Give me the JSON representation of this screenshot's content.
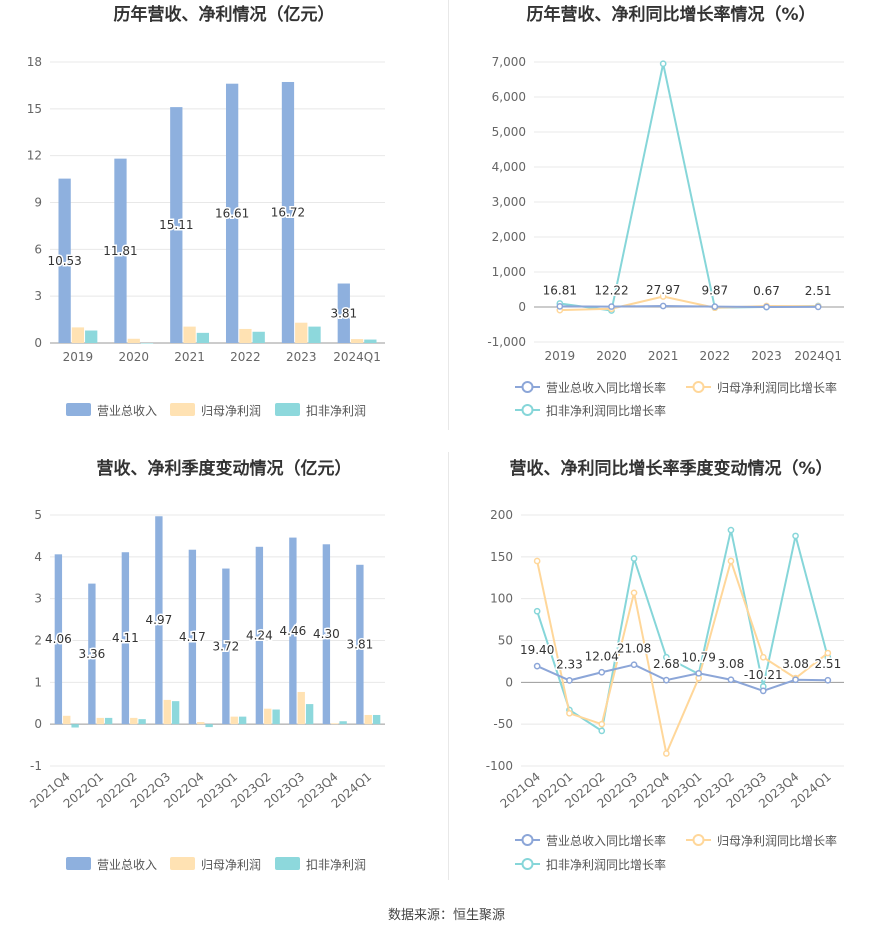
{
  "source_note": "数据来源：恒生聚源",
  "colors": {
    "revenue": "#8eb0de",
    "net_profit": "#ffe2b3",
    "deducted_profit": "#8dd8dc",
    "revenue_line": "#8ca6d8",
    "net_line": "#ffd79a",
    "deducted_line": "#86d6d9",
    "grid": "#e8e8e8",
    "axis": "#666666"
  },
  "chart_data": [
    {
      "type": "bar",
      "title": "历年营收、净利情况（亿元）",
      "categories": [
        "2019",
        "2020",
        "2021",
        "2022",
        "2023",
        "2024Q1"
      ],
      "ylim": [
        0,
        18
      ],
      "yticks": [
        0,
        3,
        6,
        9,
        12,
        15,
        18
      ],
      "label_series": 0,
      "series": [
        {
          "name": "营业总收入",
          "values": [
            10.53,
            11.81,
            15.11,
            16.61,
            16.72,
            3.81
          ],
          "labels": [
            "10.53",
            "11.81",
            "15.11",
            "16.61",
            "16.72",
            "3.81"
          ]
        },
        {
          "name": "归母净利润",
          "values": [
            1.0,
            0.27,
            1.05,
            0.9,
            1.3,
            0.25
          ]
        },
        {
          "name": "扣非净利润",
          "values": [
            0.8,
            0.0,
            0.65,
            0.72,
            1.05,
            0.22
          ]
        }
      ],
      "legend": "bottom"
    },
    {
      "type": "line",
      "title": "历年营收、净利同比增长率情况（%）",
      "categories": [
        "2019",
        "2020",
        "2021",
        "2022",
        "2023",
        "2024Q1"
      ],
      "ylim": [
        -1000,
        7000
      ],
      "yticks": [
        -1000,
        0,
        1000,
        2000,
        3000,
        4000,
        5000,
        6000,
        7000
      ],
      "ytick_labels": [
        "-1,000",
        "0",
        "1,000",
        "2,000",
        "3,000",
        "4,000",
        "5,000",
        "6,000",
        "7,000"
      ],
      "label_series": 0,
      "series": [
        {
          "name": "营业总收入同比增长率",
          "values": [
            16.81,
            12.22,
            27.97,
            9.87,
            0.67,
            2.51
          ],
          "labels": [
            "16.81",
            "12.22",
            "27.97",
            "9.87",
            "0.67",
            "2.51"
          ]
        },
        {
          "name": "归母净利润同比增长率",
          "values": [
            -90,
            -50,
            300,
            -20,
            30,
            20
          ]
        },
        {
          "name": "扣非净利润同比增长率",
          "values": [
            100,
            -100,
            6950,
            -20,
            0,
            30
          ]
        }
      ],
      "legend": "bottom"
    },
    {
      "type": "bar",
      "title": "营收、净利季度变动情况（亿元）",
      "categories": [
        "2021Q4",
        "2022Q1",
        "2022Q2",
        "2022Q3",
        "2022Q4",
        "2023Q1",
        "2023Q2",
        "2023Q3",
        "2023Q4",
        "2024Q1"
      ],
      "ylim": [
        -1,
        5
      ],
      "yticks": [
        -1,
        0,
        1,
        2,
        3,
        4,
        5
      ],
      "label_series": 0,
      "series": [
        {
          "name": "营业总收入",
          "values": [
            4.06,
            3.36,
            4.11,
            4.97,
            4.17,
            3.72,
            4.24,
            4.46,
            4.3,
            3.81
          ],
          "labels": [
            "4.06",
            "3.36",
            "4.11",
            "4.97",
            "4.17",
            "3.72",
            "4.24",
            "4.46",
            "4.30",
            "3.81"
          ]
        },
        {
          "name": "归母净利润",
          "values": [
            0.2,
            0.15,
            0.15,
            0.58,
            0.05,
            0.18,
            0.37,
            0.77,
            0.02,
            0.22
          ]
        },
        {
          "name": "扣非净利润",
          "values": [
            -0.08,
            0.15,
            0.12,
            0.55,
            -0.07,
            0.18,
            0.35,
            0.48,
            0.07,
            0.22
          ]
        }
      ],
      "legend": "bottom"
    },
    {
      "type": "line",
      "title": "营收、净利同比增长率季度变动情况（%）",
      "categories": [
        "2021Q4",
        "2022Q1",
        "2022Q2",
        "2022Q3",
        "2022Q4",
        "2023Q1",
        "2023Q2",
        "2023Q3",
        "2023Q4",
        "2024Q1"
      ],
      "ylim": [
        -100,
        200
      ],
      "yticks": [
        -100,
        -50,
        0,
        50,
        100,
        150,
        200
      ],
      "label_series": 0,
      "series": [
        {
          "name": "营业总收入同比增长率",
          "values": [
            19.4,
            2.33,
            12.04,
            21.08,
            2.68,
            10.79,
            3.08,
            -10.21,
            3.08,
            2.51
          ],
          "labels": [
            "19.40",
            "2.33",
            "12.04",
            "21.08",
            "2.68",
            "10.79",
            "3.08",
            "-10.21",
            "3.08",
            "2.51"
          ]
        },
        {
          "name": "归母净利润同比增长率",
          "values": [
            145,
            -37,
            -50,
            107,
            -85,
            5,
            145,
            30,
            5,
            35
          ]
        },
        {
          "name": "扣非净利润同比增长率",
          "values": [
            85,
            -33,
            -58,
            148,
            30,
            10,
            182,
            -5,
            175,
            30
          ]
        }
      ],
      "legend": "bottom"
    }
  ]
}
